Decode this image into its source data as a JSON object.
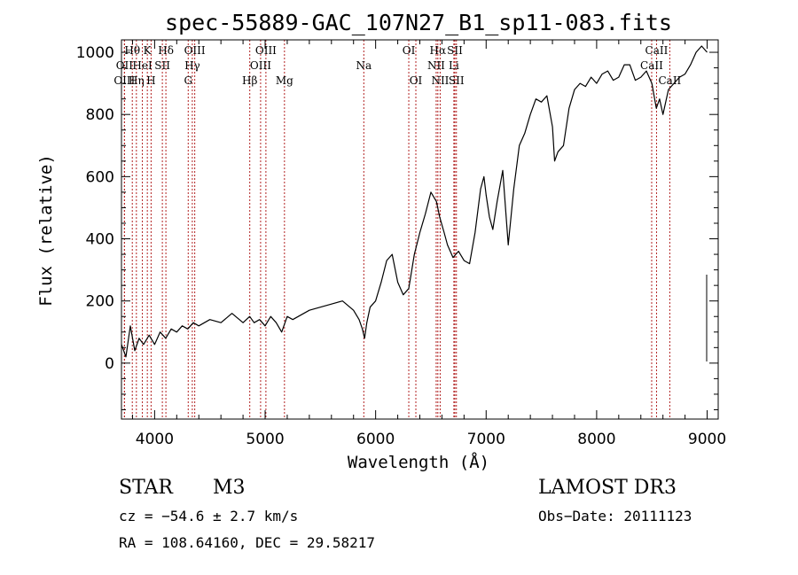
{
  "chart_data": {
    "type": "line",
    "title": "spec-55889-GAC_107N27_B1_sp11-083.fits",
    "xlabel": "Wavelength (Å)",
    "ylabel": "Flux (relative)",
    "xlim": [
      3700,
      9100
    ],
    "ylim": [
      -180,
      1040
    ],
    "x_ticks": [
      4000,
      5000,
      6000,
      7000,
      8000,
      9000
    ],
    "y_ticks": [
      0,
      200,
      400,
      600,
      800,
      1000
    ],
    "line_color": "#000000",
    "marker_color": "#b22222",
    "series": [
      {
        "name": "spectrum",
        "x": [
          3700,
          3740,
          3780,
          3820,
          3860,
          3900,
          3950,
          4000,
          4050,
          4100,
          4150,
          4200,
          4250,
          4300,
          4350,
          4400,
          4500,
          4600,
          4700,
          4800,
          4860,
          4900,
          4950,
          5000,
          5050,
          5100,
          5150,
          5200,
          5250,
          5300,
          5400,
          5500,
          5600,
          5700,
          5800,
          5850,
          5880,
          5900,
          5920,
          5950,
          6000,
          6050,
          6100,
          6150,
          6200,
          6250,
          6300,
          6350,
          6400,
          6450,
          6500,
          6550,
          6580,
          6620,
          6650,
          6700,
          6750,
          6800,
          6850,
          6900,
          6950,
          6980,
          7000,
          7030,
          7060,
          7100,
          7150,
          7200,
          7250,
          7300,
          7350,
          7400,
          7450,
          7500,
          7550,
          7600,
          7620,
          7650,
          7700,
          7750,
          7800,
          7850,
          7900,
          7950,
          8000,
          8050,
          8100,
          8150,
          8200,
          8250,
          8300,
          8350,
          8400,
          8450,
          8500,
          8540,
          8570,
          8600,
          8650,
          8700,
          8750,
          8800,
          8850,
          8900,
          8950,
          9000
        ],
        "y": [
          60,
          20,
          120,
          40,
          80,
          60,
          90,
          60,
          100,
          80,
          110,
          100,
          120,
          110,
          130,
          120,
          140,
          130,
          160,
          130,
          150,
          130,
          140,
          120,
          150,
          130,
          100,
          150,
          140,
          150,
          170,
          180,
          190,
          200,
          170,
          140,
          110,
          80,
          130,
          180,
          200,
          260,
          330,
          350,
          260,
          220,
          240,
          350,
          420,
          480,
          550,
          520,
          470,
          420,
          380,
          340,
          360,
          330,
          320,
          420,
          560,
          600,
          540,
          470,
          430,
          520,
          620,
          380,
          560,
          700,
          740,
          800,
          850,
          840,
          860,
          760,
          650,
          680,
          700,
          820,
          880,
          900,
          890,
          920,
          900,
          930,
          940,
          910,
          920,
          960,
          960,
          910,
          920,
          940,
          900,
          820,
          850,
          800,
          880,
          900,
          920,
          930,
          960,
          1000,
          1020,
          1000
        ]
      }
    ],
    "line_markers": [
      {
        "name": "Hθ",
        "x": 3798,
        "row": 1
      },
      {
        "name": "OII",
        "x": 3727,
        "row": 2
      },
      {
        "name": "OIII",
        "x": 3727,
        "row": 3
      },
      {
        "name": "Hη",
        "x": 3835,
        "row": 3
      },
      {
        "name": "HeI",
        "x": 3889,
        "row": 2
      },
      {
        "name": "K",
        "x": 3934,
        "row": 1
      },
      {
        "name": "H",
        "x": 3968,
        "row": 3
      },
      {
        "name": "SII",
        "x": 4070,
        "row": 2
      },
      {
        "name": "Hδ",
        "x": 4102,
        "row": 1
      },
      {
        "name": "G",
        "x": 4304,
        "row": 3
      },
      {
        "name": "Hγ",
        "x": 4341,
        "row": 2
      },
      {
        "name": "OIII",
        "x": 4363,
        "row": 1
      },
      {
        "name": "Hβ",
        "x": 4861,
        "row": 3
      },
      {
        "name": "OIII",
        "x": 4959,
        "row": 2
      },
      {
        "name": "OIII",
        "x": 5007,
        "row": 1
      },
      {
        "name": "Mg",
        "x": 5175,
        "row": 3
      },
      {
        "name": "Na",
        "x": 5893,
        "row": 2
      },
      {
        "name": "OI",
        "x": 6300,
        "row": 1
      },
      {
        "name": "OI",
        "x": 6364,
        "row": 3
      },
      {
        "name": "NII",
        "x": 6548,
        "row": 2
      },
      {
        "name": "Hα",
        "x": 6563,
        "row": 1
      },
      {
        "name": "NII",
        "x": 6584,
        "row": 3
      },
      {
        "name": "Li",
        "x": 6708,
        "row": 2
      },
      {
        "name": "SII",
        "x": 6717,
        "row": 1
      },
      {
        "name": "SII",
        "x": 6731,
        "row": 3
      },
      {
        "name": "CaII",
        "x": 8498,
        "row": 2
      },
      {
        "name": "CaII",
        "x": 8542,
        "row": 1
      },
      {
        "name": "CaII",
        "x": 8662,
        "row": 3
      }
    ]
  },
  "info": {
    "object_class": "STAR",
    "subclass": "M3",
    "survey": "LAMOST DR3",
    "cz": "cz = −54.6 ± 2.7 km/s",
    "obs_date": "Obs−Date: 20111123",
    "coords": "RA = 108.64160, DEC =  29.58217"
  }
}
